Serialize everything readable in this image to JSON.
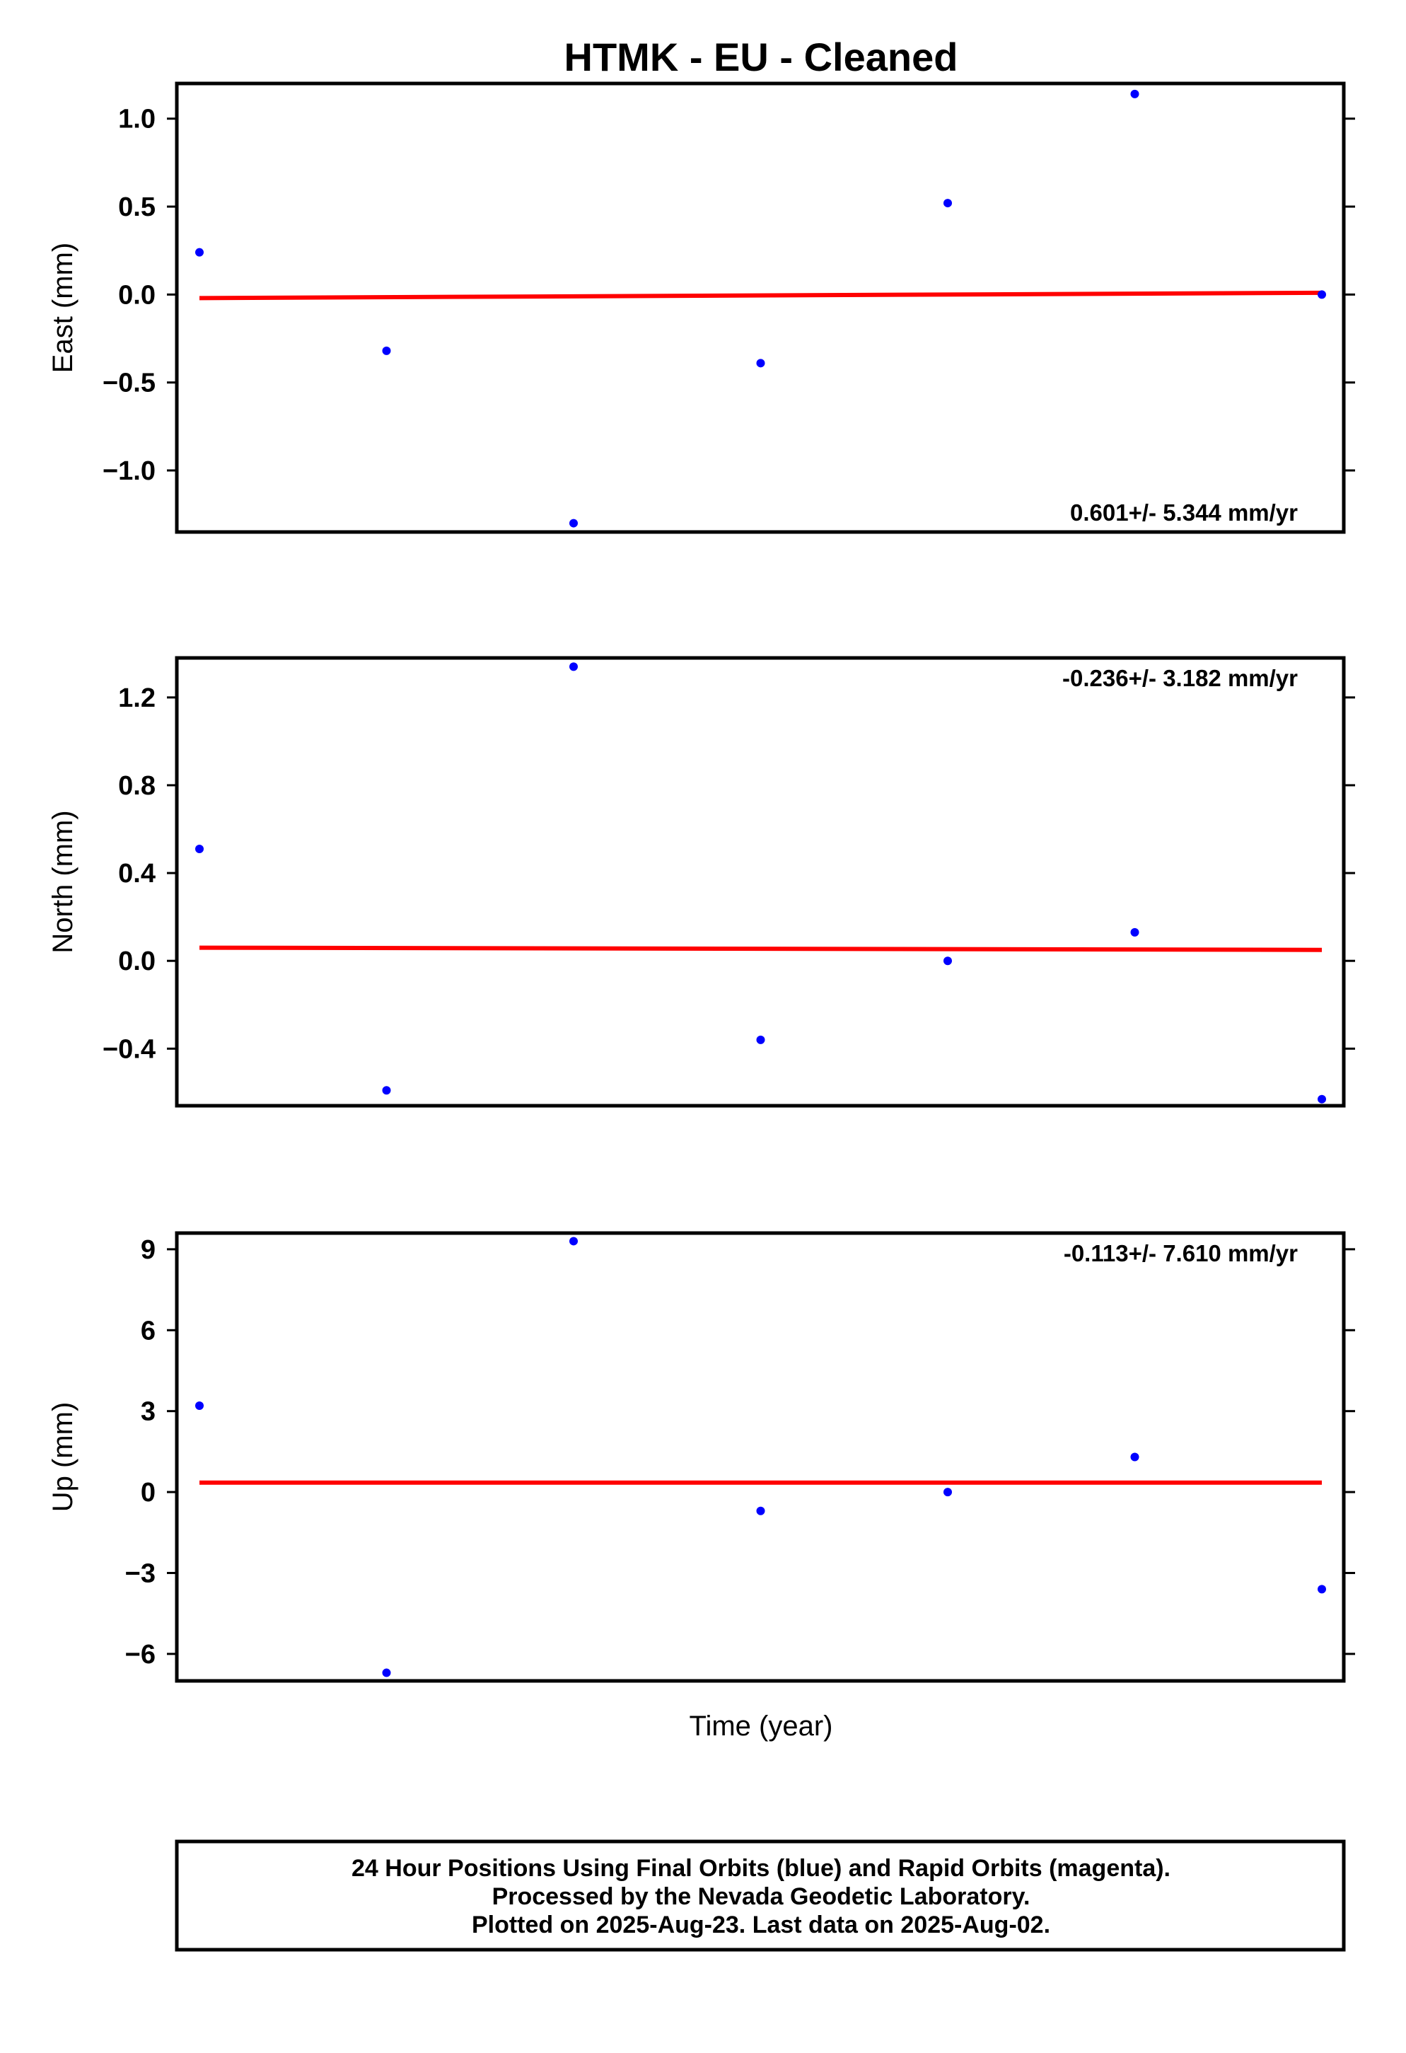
{
  "chart_data": {
    "title": "HTMK  - EU - Cleaned",
    "xlabel": "Time (year)",
    "type": "scatter",
    "x": [
      0,
      1,
      2,
      3,
      4,
      5,
      6
    ],
    "colors": {
      "points": "#0000ff",
      "trend": "#ff0000",
      "frame": "#000000"
    },
    "panels": [
      {
        "name": "east",
        "ylabel": "East (mm)",
        "ylim": [
          -1.35,
          1.2
        ],
        "ticks": [
          1.0,
          0.5,
          0.0,
          -0.5,
          -1.0
        ],
        "tick_labels": [
          "1.0",
          "0.5",
          "0.0",
          "−0.5",
          "−1.0"
        ],
        "values": [
          0.24,
          -0.32,
          -1.3,
          -0.39,
          0.52,
          1.14,
          0.0
        ],
        "trend": [
          -0.02,
          0.01
        ],
        "rate": "0.601+/- 5.344 mm/yr",
        "rate_position": "bottom-right"
      },
      {
        "name": "north",
        "ylabel": "North (mm)",
        "ylim": [
          -0.66,
          1.38
        ],
        "ticks": [
          1.2,
          0.8,
          0.4,
          0.0,
          -0.4
        ],
        "tick_labels": [
          "1.2",
          "0.8",
          "0.4",
          "0.0",
          "−0.4"
        ],
        "values": [
          0.51,
          -0.59,
          1.34,
          -0.36,
          0.0,
          0.13,
          -0.63
        ],
        "trend": [
          0.06,
          0.05
        ],
        "rate": "-0.236+/- 3.182 mm/yr",
        "rate_position": "top-right"
      },
      {
        "name": "up",
        "ylabel": "Up (mm)",
        "ylim": [
          -7.0,
          9.6
        ],
        "ticks": [
          9,
          6,
          3,
          0,
          -3,
          -6
        ],
        "tick_labels": [
          "9",
          "6",
          "3",
          "0",
          "−3",
          "−6"
        ],
        "values": [
          3.2,
          -6.7,
          9.3,
          -0.7,
          0.0,
          1.3,
          -3.6
        ],
        "trend": [
          0.35,
          0.35
        ],
        "rate": "-0.113+/- 7.610 mm/yr",
        "rate_position": "top-right"
      }
    ]
  },
  "footer": {
    "line1": "24 Hour Positions Using Final Orbits (blue) and Rapid Orbits (magenta).",
    "line2": "Processed by the Nevada Geodetic Laboratory.",
    "line3": "Plotted on 2025-Aug-23. Last data on 2025-Aug-02."
  }
}
